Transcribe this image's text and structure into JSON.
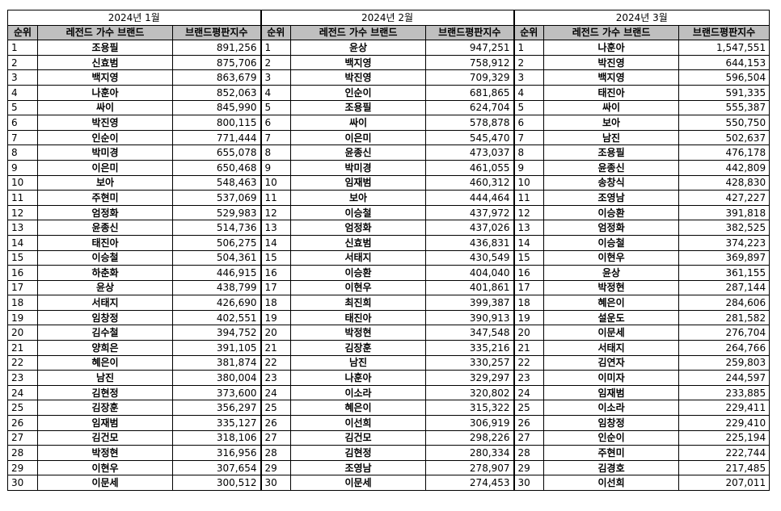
{
  "months": [
    {
      "title": "2024년 1월",
      "headers": [
        "순위",
        "레전드 가수 브랜드",
        "브랜드평판지수"
      ],
      "rows": [
        [
          "1",
          "조용필",
          "891,256"
        ],
        [
          "2",
          "신효범",
          "875,706"
        ],
        [
          "3",
          "백지영",
          "863,679"
        ],
        [
          "4",
          "나훈아",
          "852,063"
        ],
        [
          "5",
          "싸이",
          "845,990"
        ],
        [
          "6",
          "박진영",
          "800,115"
        ],
        [
          "7",
          "인순이",
          "771,444"
        ],
        [
          "8",
          "박미경",
          "655,078"
        ],
        [
          "9",
          "이은미",
          "650,468"
        ],
        [
          "10",
          "보아",
          "548,463"
        ],
        [
          "11",
          "주현미",
          "537,069"
        ],
        [
          "12",
          "엄정화",
          "529,983"
        ],
        [
          "13",
          "윤종신",
          "514,736"
        ],
        [
          "14",
          "태진아",
          "506,275"
        ],
        [
          "15",
          "이승철",
          "504,361"
        ],
        [
          "16",
          "하춘화",
          "446,915"
        ],
        [
          "17",
          "윤상",
          "438,799"
        ],
        [
          "18",
          "서태지",
          "426,690"
        ],
        [
          "19",
          "임창정",
          "402,551"
        ],
        [
          "20",
          "김수철",
          "394,752"
        ],
        [
          "21",
          "양희은",
          "391,105"
        ],
        [
          "22",
          "혜은이",
          "381,874"
        ],
        [
          "23",
          "남진",
          "380,004"
        ],
        [
          "24",
          "김현정",
          "373,600"
        ],
        [
          "25",
          "김장훈",
          "356,297"
        ],
        [
          "26",
          "임재범",
          "335,127"
        ],
        [
          "27",
          "김건모",
          "318,106"
        ],
        [
          "28",
          "박정현",
          "316,956"
        ],
        [
          "29",
          "이현우",
          "307,654"
        ],
        [
          "30",
          "이문세",
          "300,512"
        ]
      ]
    },
    {
      "title": "2024년 2월",
      "headers": [
        "순위",
        "레전드 가수 브랜드",
        "브랜드평판지수"
      ],
      "rows": [
        [
          "1",
          "윤상",
          "947,251"
        ],
        [
          "2",
          "백지영",
          "758,912"
        ],
        [
          "3",
          "박진영",
          "709,329"
        ],
        [
          "4",
          "인순이",
          "681,865"
        ],
        [
          "5",
          "조용필",
          "624,704"
        ],
        [
          "6",
          "싸이",
          "578,878"
        ],
        [
          "7",
          "이은미",
          "545,470"
        ],
        [
          "8",
          "윤종신",
          "473,037"
        ],
        [
          "9",
          "박미경",
          "461,055"
        ],
        [
          "10",
          "임재범",
          "460,312"
        ],
        [
          "11",
          "보아",
          "444,464"
        ],
        [
          "12",
          "이승철",
          "437,972"
        ],
        [
          "13",
          "엄정화",
          "437,026"
        ],
        [
          "14",
          "신효범",
          "436,831"
        ],
        [
          "15",
          "서태지",
          "430,549"
        ],
        [
          "16",
          "이승환",
          "404,040"
        ],
        [
          "17",
          "이현우",
          "401,861"
        ],
        [
          "18",
          "최진희",
          "399,387"
        ],
        [
          "19",
          "태진아",
          "390,913"
        ],
        [
          "20",
          "박정현",
          "347,548"
        ],
        [
          "21",
          "김장훈",
          "335,216"
        ],
        [
          "22",
          "남진",
          "330,257"
        ],
        [
          "23",
          "나훈아",
          "329,297"
        ],
        [
          "24",
          "이소라",
          "320,802"
        ],
        [
          "25",
          "혜은이",
          "315,322"
        ],
        [
          "26",
          "이선희",
          "306,919"
        ],
        [
          "27",
          "김건모",
          "298,226"
        ],
        [
          "28",
          "김현정",
          "280,334"
        ],
        [
          "29",
          "조영남",
          "278,907"
        ],
        [
          "30",
          "이문세",
          "274,453"
        ]
      ]
    },
    {
      "title": "2024년 3월",
      "headers": [
        "순위",
        "레전드 가수 브랜드",
        "브랜드평판지수"
      ],
      "rows": [
        [
          "1",
          "나훈아",
          "1,547,551"
        ],
        [
          "2",
          "박진영",
          "644,153"
        ],
        [
          "3",
          "백지영",
          "596,504"
        ],
        [
          "4",
          "태진아",
          "591,335"
        ],
        [
          "5",
          "싸이",
          "555,387"
        ],
        [
          "6",
          "보아",
          "550,750"
        ],
        [
          "7",
          "남진",
          "502,637"
        ],
        [
          "8",
          "조용필",
          "476,178"
        ],
        [
          "9",
          "윤종신",
          "442,809"
        ],
        [
          "10",
          "송창식",
          "428,830"
        ],
        [
          "11",
          "조영남",
          "427,227"
        ],
        [
          "12",
          "이승환",
          "391,818"
        ],
        [
          "13",
          "엄정화",
          "382,525"
        ],
        [
          "14",
          "이승철",
          "374,223"
        ],
        [
          "15",
          "이현우",
          "369,897"
        ],
        [
          "16",
          "윤상",
          "361,155"
        ],
        [
          "17",
          "박정현",
          "287,144"
        ],
        [
          "18",
          "혜은이",
          "284,606"
        ],
        [
          "19",
          "설운도",
          "281,582"
        ],
        [
          "20",
          "이문세",
          "276,704"
        ],
        [
          "21",
          "서태지",
          "264,766"
        ],
        [
          "22",
          "김연자",
          "259,803"
        ],
        [
          "23",
          "이미자",
          "244,597"
        ],
        [
          "24",
          "임재범",
          "233,885"
        ],
        [
          "25",
          "이소라",
          "229,411"
        ],
        [
          "26",
          "임창정",
          "229,410"
        ],
        [
          "27",
          "인순이",
          "225,194"
        ],
        [
          "28",
          "주현미",
          "222,744"
        ],
        [
          "29",
          "김경호",
          "217,485"
        ],
        [
          "30",
          "이선희",
          "207,011"
        ]
      ]
    }
  ]
}
